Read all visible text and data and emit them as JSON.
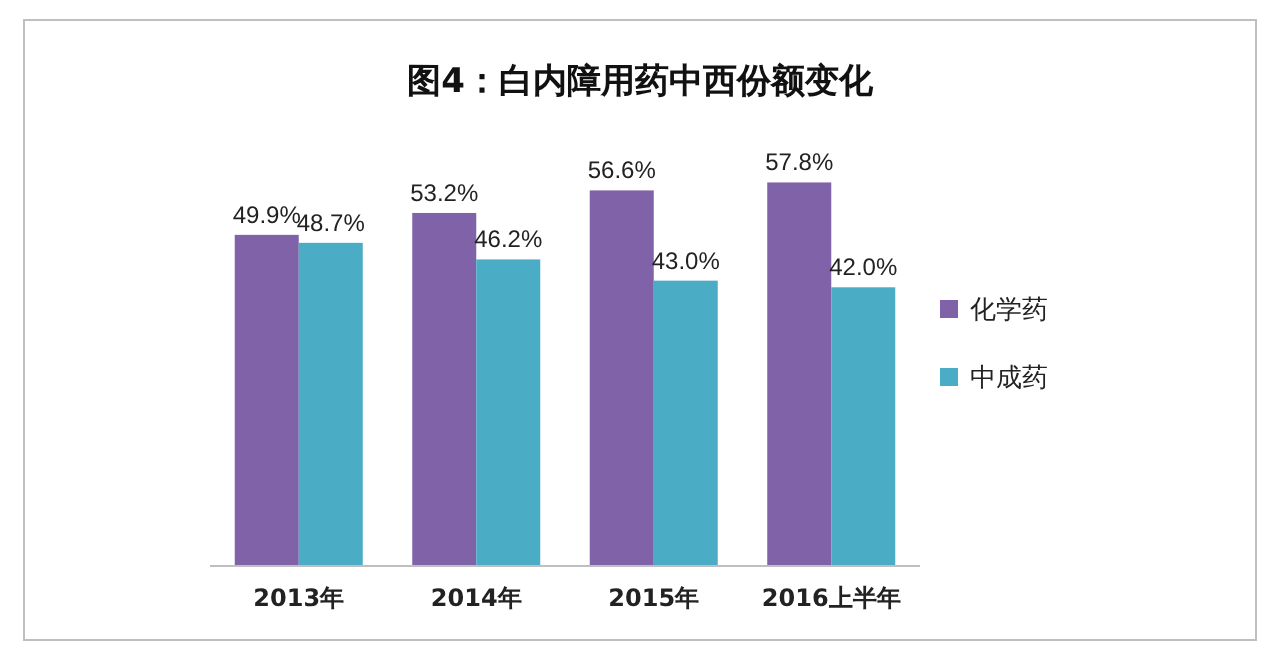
{
  "chart_data": {
    "type": "bar",
    "title": "图4：白内障用药中西份额变化",
    "categories": [
      "2013年",
      "2014年",
      "2015年",
      "2016上半年"
    ],
    "series": [
      {
        "name": "化学药",
        "color": "#7f62a8",
        "values": [
          49.9,
          53.2,
          56.6,
          57.8
        ],
        "value_labels": [
          "49.9%",
          "53.2%",
          "56.6%",
          "57.8%"
        ]
      },
      {
        "name": "中成药",
        "color": "#4bacc6",
        "values": [
          48.7,
          46.2,
          43.0,
          42.0
        ],
        "value_labels": [
          "48.7%",
          "46.2%",
          "43.0%",
          "42.0%"
        ]
      }
    ],
    "legend": "right",
    "grid": false
  }
}
